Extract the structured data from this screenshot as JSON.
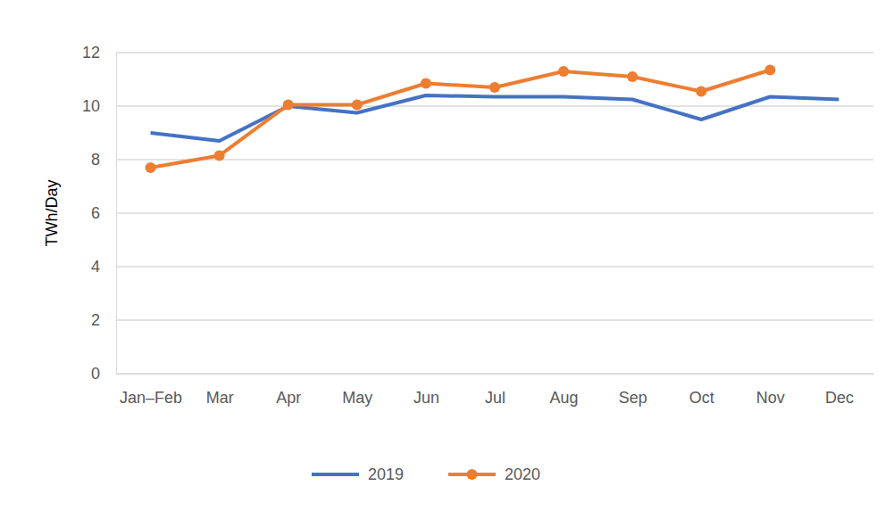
{
  "chart_data": {
    "type": "line",
    "y_label": "TWh/Day",
    "categories": [
      "Jan–Feb",
      "Mar",
      "Apr",
      "May",
      "Jun",
      "Jul",
      "Aug",
      "Sep",
      "Oct",
      "Nov",
      "Dec"
    ],
    "series": [
      {
        "name": "2019",
        "color": "#4472c4",
        "marker": "none",
        "line_style": "solid",
        "values": [
          9.0,
          8.7,
          10.0,
          9.75,
          10.4,
          10.35,
          10.35,
          10.25,
          9.5,
          10.35,
          10.25
        ]
      },
      {
        "name": "2020",
        "color": "#ed7d31",
        "marker": "circle",
        "line_style": "solid",
        "values": [
          7.7,
          8.15,
          10.05,
          10.05,
          10.85,
          10.7,
          11.3,
          11.1,
          10.55,
          11.35,
          null
        ]
      }
    ],
    "ylim": [
      0,
      12
    ],
    "yticks": [
      0,
      2,
      4,
      6,
      8,
      10,
      12
    ],
    "grid": true,
    "legend": "bottom"
  }
}
